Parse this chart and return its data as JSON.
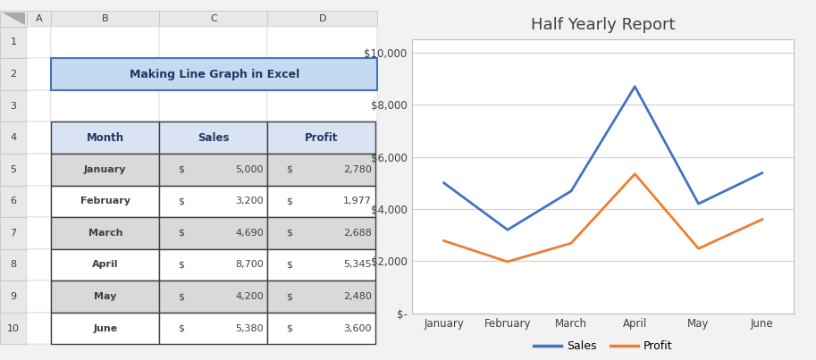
{
  "title": "Making Line Graph in Excel",
  "chart_title": "Half Yearly Report",
  "months": [
    "January",
    "February",
    "March",
    "April",
    "May",
    "June"
  ],
  "sales": [
    5000,
    3200,
    4690,
    8700,
    4200,
    5380
  ],
  "profit": [
    2780,
    1977,
    2688,
    5345,
    2480,
    3600
  ],
  "sales_color": "#4472C4",
  "profit_color": "#ED7D31",
  "table_header_bg": "#DAE3F3",
  "table_odd_bg": "#D9D9D9",
  "table_even_bg": "#FFFFFF",
  "title_bg": "#C5D9F1",
  "excel_row_header_bg": "#E8E8E8",
  "excel_col_header_bg": "#E8E8E8",
  "excel_cell_bg": "#FFFFFF",
  "excel_border": "#BFBFBF",
  "y_ticks": [
    0,
    2000,
    4000,
    6000,
    8000,
    10000
  ],
  "y_tick_labels": [
    "$-",
    "$2,000",
    "$4,000",
    "$6,000",
    "$8,000",
    "$10,000"
  ],
  "ylim": [
    0,
    10500
  ],
  "line_width": 2.0,
  "legend_labels": [
    "Sales",
    "Profit"
  ],
  "col_header_labels": [
    "Month",
    "Sales",
    "Profit"
  ],
  "row_numbers": [
    "1",
    "2",
    "3",
    "4",
    "5",
    "6",
    "7",
    "8",
    "9",
    "10"
  ],
  "col_letters": [
    "A",
    "B",
    "C",
    "D"
  ],
  "outer_bg": "#F2F2F2"
}
